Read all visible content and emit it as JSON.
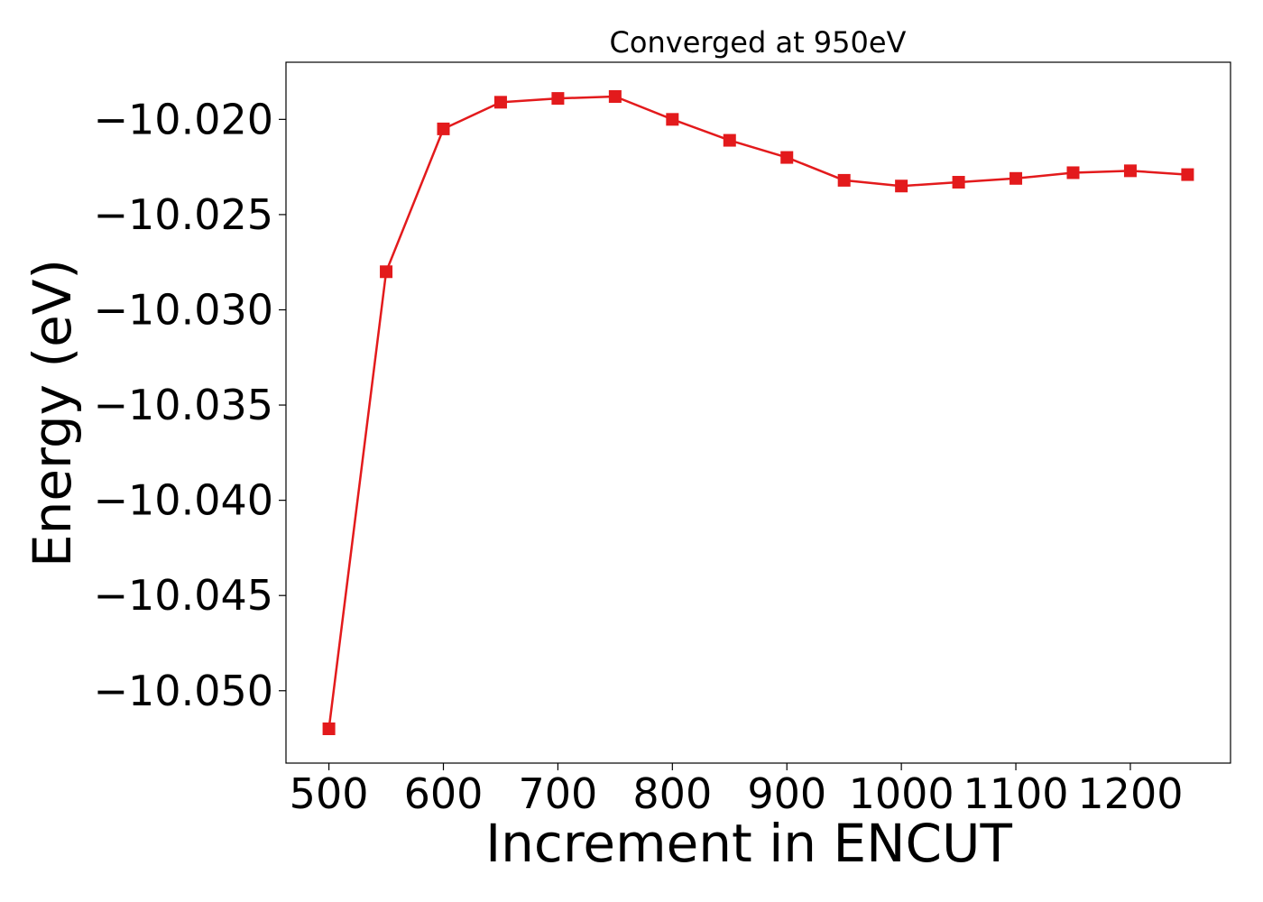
{
  "chart_data": {
    "type": "line",
    "title": "Converged at 950eV",
    "xlabel": "Increment in ENCUT",
    "ylabel": "Energy (eV)",
    "x": [
      500,
      550,
      600,
      650,
      700,
      750,
      800,
      850,
      900,
      950,
      1000,
      1050,
      1100,
      1150,
      1200,
      1250
    ],
    "series": [
      {
        "values": [
          -10.052,
          -10.028,
          -10.0205,
          -10.0191,
          -10.0189,
          -10.0188,
          -10.02,
          -10.0211,
          -10.022,
          -10.0232,
          -10.0235,
          -10.0233,
          -10.0231,
          -10.0228,
          -10.0227,
          -10.0229
        ],
        "color": "#e31a1c",
        "marker": "square"
      }
    ],
    "xlim": [
      462.5,
      1287.5
    ],
    "ylim": [
      -10.0538,
      -10.017
    ],
    "xticks": [
      500,
      600,
      700,
      800,
      900,
      1000,
      1100,
      1200
    ],
    "xtick_labels": [
      "500",
      "600",
      "700",
      "800",
      "900",
      "1000",
      "1100",
      "1200"
    ],
    "yticks": [
      -10.05,
      -10.045,
      -10.04,
      -10.035,
      -10.03,
      -10.025,
      -10.02
    ],
    "ytick_labels": [
      "−10.050",
      "−10.045",
      "−10.040",
      "−10.035",
      "−10.030",
      "−10.025",
      "−10.020"
    ],
    "grid": false,
    "legend": false
  }
}
